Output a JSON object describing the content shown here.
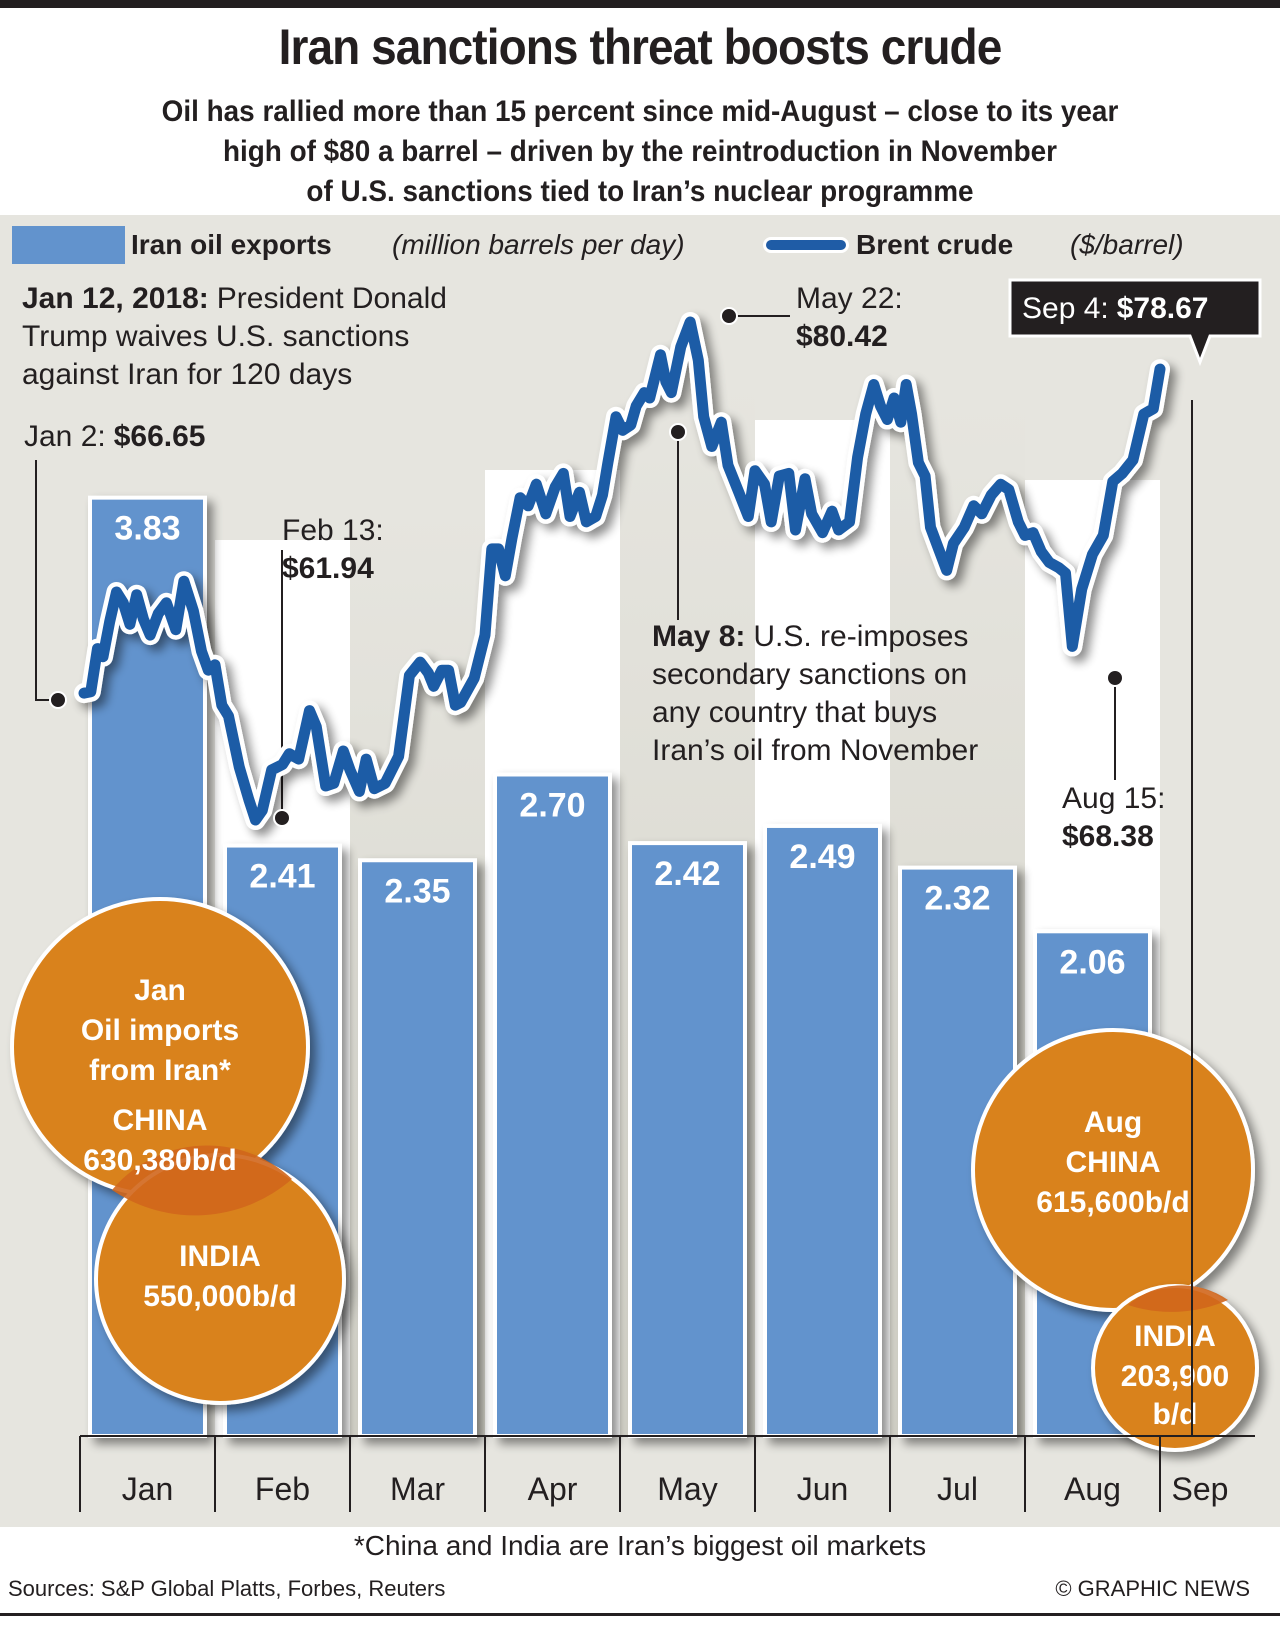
{
  "header": {
    "title": "Iran sanctions threat boosts crude",
    "subtitle_lines": [
      "Oil has rallied more than 15 percent since mid-August – close to its year",
      "high of $80 a barrel – driven by the reintroduction in November",
      "of U.S. sanctions tied to Iran’s nuclear programme"
    ]
  },
  "legend": {
    "bars_label": "Iran oil exports",
    "bars_unit": "(million barrels per day)",
    "line_label": "Brent crude",
    "line_unit": "($/barrel)"
  },
  "colors": {
    "bar": "#6293cd",
    "line": "#1f5ca6",
    "bubble": "#d9821e",
    "bubble_overlap": "#d0661c",
    "panel_bg": "#e6e5df",
    "column_light": "#ffffff",
    "column_dark": "#d9d8cf",
    "text": "#231f20"
  },
  "annotations": {
    "jan12": {
      "bold": "Jan 12, 2018:",
      "lines": [
        "President Donald",
        "Trump waives U.S. sanctions",
        "against Iran for 120 days"
      ]
    },
    "jan2": {
      "label": "Jan 2:",
      "value": "$66.65"
    },
    "feb13": {
      "label": "Feb 13:",
      "value": "$61.94"
    },
    "may22": {
      "label": "May 22:",
      "value": "$80.42"
    },
    "may8": {
      "bold": "May 8:",
      "lines": [
        "U.S. re-imposes",
        "secondary sanctions on",
        "any country that buys",
        "Iran’s oil from November"
      ]
    },
    "aug15": {
      "label": "Aug 15:",
      "value": "$68.38"
    },
    "sep4": {
      "label": "Sep 4:",
      "value": "$78.67"
    }
  },
  "bubbles": {
    "jan_china": {
      "lines": [
        "Jan",
        "Oil imports",
        "from Iran*"
      ],
      "country": "CHINA",
      "value": "630,380b/d"
    },
    "jan_india": {
      "country": "INDIA",
      "value": "550,000b/d"
    },
    "aug_china": {
      "lines": [
        "Aug"
      ],
      "country": "CHINA",
      "value": "615,600b/d"
    },
    "aug_india": {
      "country": "INDIA",
      "value_lines": [
        "203,900",
        "b/d"
      ]
    }
  },
  "footer": {
    "footnote": "*China and India are Iran’s biggest oil markets",
    "sources": "Sources: S&P Global Platts, Forbes, Reuters",
    "credit": "© GRAPHIC NEWS"
  },
  "chart_data": {
    "type": "bar+line",
    "title": "Iran sanctions threat boosts crude",
    "categories": [
      "Jan",
      "Feb",
      "Mar",
      "Apr",
      "May",
      "Jun",
      "Jul",
      "Aug",
      "Sep"
    ],
    "bars": {
      "name": "Iran oil exports (million barrels per day)",
      "categories": [
        "Jan",
        "Feb",
        "Mar",
        "Apr",
        "May",
        "Jun",
        "Jul",
        "Aug"
      ],
      "values": [
        3.83,
        2.41,
        2.35,
        2.7,
        2.42,
        2.49,
        2.32,
        2.06
      ],
      "labels": [
        "3.83",
        "2.41",
        "2.35",
        "2.70",
        "2.42",
        "2.49",
        "2.32",
        "2.06"
      ],
      "ylim": [
        0,
        4
      ]
    },
    "line": {
      "name": "Brent crude ($/barrel)",
      "x_unit": "month index (0 = Jan 1, 8 = Sep 1)",
      "points": [
        [
          0.03,
          66.65
        ],
        [
          0.08,
          66.7
        ],
        [
          0.13,
          68.3
        ],
        [
          0.17,
          68.0
        ],
        [
          0.22,
          69.3
        ],
        [
          0.27,
          70.4
        ],
        [
          0.32,
          70.0
        ],
        [
          0.37,
          69.2
        ],
        [
          0.42,
          70.3
        ],
        [
          0.47,
          69.4
        ],
        [
          0.52,
          68.8
        ],
        [
          0.58,
          69.6
        ],
        [
          0.64,
          70.0
        ],
        [
          0.71,
          69.0
        ],
        [
          0.77,
          70.8
        ],
        [
          0.84,
          69.7
        ],
        [
          0.9,
          68.2
        ],
        [
          0.95,
          67.5
        ],
        [
          1.0,
          67.7
        ],
        [
          1.05,
          66.2
        ],
        [
          1.1,
          65.8
        ],
        [
          1.18,
          63.9
        ],
        [
          1.25,
          62.7
        ],
        [
          1.3,
          61.94
        ],
        [
          1.35,
          62.3
        ],
        [
          1.42,
          63.8
        ],
        [
          1.5,
          64.0
        ],
        [
          1.55,
          64.4
        ],
        [
          1.62,
          64.2
        ],
        [
          1.7,
          66.0
        ],
        [
          1.75,
          65.4
        ],
        [
          1.82,
          63.2
        ],
        [
          1.88,
          63.3
        ],
        [
          1.95,
          64.5
        ],
        [
          2.0,
          63.8
        ],
        [
          2.07,
          63.0
        ],
        [
          2.12,
          64.2
        ],
        [
          2.18,
          63.1
        ],
        [
          2.26,
          63.3
        ],
        [
          2.36,
          64.3
        ],
        [
          2.44,
          67.3
        ],
        [
          2.52,
          67.8
        ],
        [
          2.58,
          67.4
        ],
        [
          2.62,
          66.9
        ],
        [
          2.68,
          67.5
        ],
        [
          2.73,
          67.5
        ],
        [
          2.78,
          66.2
        ],
        [
          2.82,
          66.3
        ],
        [
          2.92,
          67.2
        ],
        [
          3.0,
          68.8
        ],
        [
          3.05,
          72.0
        ],
        [
          3.1,
          72.0
        ],
        [
          3.15,
          71.0
        ],
        [
          3.2,
          72.4
        ],
        [
          3.26,
          73.9
        ],
        [
          3.32,
          73.6
        ],
        [
          3.38,
          74.4
        ],
        [
          3.45,
          73.3
        ],
        [
          3.52,
          74.3
        ],
        [
          3.58,
          74.8
        ],
        [
          3.63,
          73.2
        ],
        [
          3.7,
          74.1
        ],
        [
          3.75,
          73.0
        ],
        [
          3.82,
          73.2
        ],
        [
          3.87,
          74.0
        ],
        [
          3.91,
          75.2
        ],
        [
          3.97,
          76.9
        ],
        [
          4.02,
          76.4
        ],
        [
          4.08,
          76.6
        ],
        [
          4.12,
          77.3
        ],
        [
          4.18,
          77.8
        ],
        [
          4.22,
          77.6
        ],
        [
          4.3,
          79.2
        ],
        [
          4.34,
          78.2
        ],
        [
          4.38,
          77.8
        ],
        [
          4.45,
          79.5
        ],
        [
          4.52,
          80.42
        ],
        [
          4.58,
          79.0
        ],
        [
          4.62,
          76.9
        ],
        [
          4.68,
          75.8
        ],
        [
          4.75,
          76.7
        ],
        [
          4.8,
          75.1
        ],
        [
          4.88,
          74.1
        ],
        [
          4.95,
          73.2
        ],
        [
          5.0,
          74.9
        ],
        [
          5.07,
          74.4
        ],
        [
          5.12,
          73.0
        ],
        [
          5.18,
          74.7
        ],
        [
          5.25,
          74.8
        ],
        [
          5.3,
          72.7
        ],
        [
          5.37,
          74.6
        ],
        [
          5.42,
          73.3
        ],
        [
          5.5,
          72.6
        ],
        [
          5.57,
          73.4
        ],
        [
          5.62,
          72.7
        ],
        [
          5.7,
          73.0
        ],
        [
          5.76,
          75.4
        ],
        [
          5.82,
          77.0
        ],
        [
          5.88,
          78.1
        ],
        [
          5.93,
          77.3
        ],
        [
          5.98,
          76.8
        ],
        [
          6.03,
          77.6
        ],
        [
          6.08,
          76.7
        ],
        [
          6.12,
          78.1
        ],
        [
          6.16,
          77.0
        ],
        [
          6.21,
          75.2
        ],
        [
          6.26,
          74.7
        ],
        [
          6.3,
          72.8
        ],
        [
          6.36,
          72.0
        ],
        [
          6.42,
          71.2
        ],
        [
          6.47,
          72.2
        ],
        [
          6.55,
          72.8
        ],
        [
          6.62,
          73.6
        ],
        [
          6.68,
          73.3
        ],
        [
          6.75,
          74.0
        ],
        [
          6.82,
          74.4
        ],
        [
          6.88,
          74.2
        ],
        [
          6.95,
          73.0
        ],
        [
          7.0,
          72.5
        ],
        [
          7.06,
          72.6
        ],
        [
          7.12,
          71.9
        ],
        [
          7.18,
          71.5
        ],
        [
          7.25,
          71.3
        ],
        [
          7.3,
          71.1
        ],
        [
          7.35,
          68.38
        ],
        [
          7.42,
          70.5
        ],
        [
          7.5,
          71.8
        ],
        [
          7.58,
          72.5
        ],
        [
          7.65,
          74.5
        ],
        [
          7.72,
          74.8
        ],
        [
          7.8,
          75.3
        ],
        [
          7.88,
          77.0
        ],
        [
          7.95,
          77.2
        ],
        [
          8.0,
          78.67
        ]
      ],
      "highlights": [
        {
          "date": "Jan 2",
          "value": 66.65
        },
        {
          "date": "Feb 13",
          "value": 61.94
        },
        {
          "date": "May 22",
          "value": 80.42
        },
        {
          "date": "Aug 15",
          "value": 68.38
        },
        {
          "date": "Sep 4",
          "value": 78.67
        }
      ],
      "ylim": [
        56.95,
        86.82
      ]
    },
    "xlabel": "",
    "ylabel": "",
    "grid": false,
    "legend": "top"
  }
}
